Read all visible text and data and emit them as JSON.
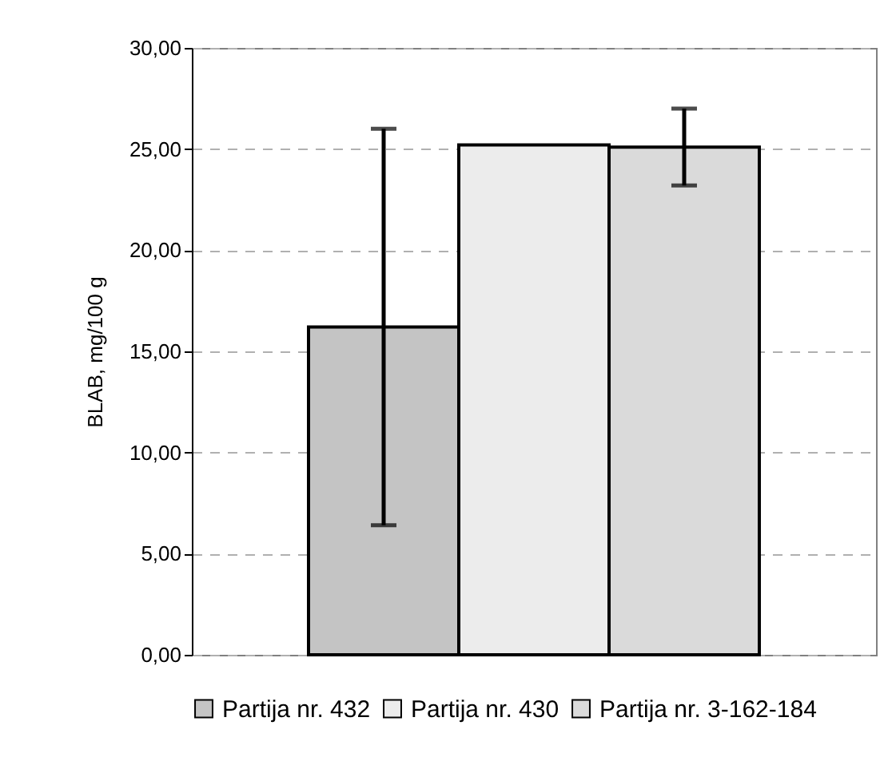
{
  "chart_data": {
    "type": "bar",
    "ylabel": "BLAB, mg/100 g",
    "categories": [
      null
    ],
    "series": [
      {
        "name": "Partija nr. 432",
        "color": "#c4c4c4",
        "values": [
          16.2
        ],
        "errors": [
          [
            6.4,
            26.0
          ]
        ]
      },
      {
        "name": "Partija nr. 430",
        "color": "#ececec",
        "values": [
          25.2
        ]
      },
      {
        "name": "Partija nr. 3-162-184",
        "color": "#dadada",
        "values": [
          25.1
        ],
        "errors": [
          [
            23.2,
            27.0
          ]
        ]
      }
    ],
    "ylim": [
      0,
      30
    ],
    "yticks": [
      {
        "value": 0,
        "label": "0,00"
      },
      {
        "value": 5,
        "label": "5,00"
      },
      {
        "value": 10,
        "label": "10,00"
      },
      {
        "value": 15,
        "label": "15,00"
      },
      {
        "value": 20,
        "label": "20,00"
      },
      {
        "value": 25,
        "label": "25,00"
      },
      {
        "value": 30,
        "label": "30,00"
      }
    ],
    "grid": "y",
    "legend": "bottom"
  }
}
